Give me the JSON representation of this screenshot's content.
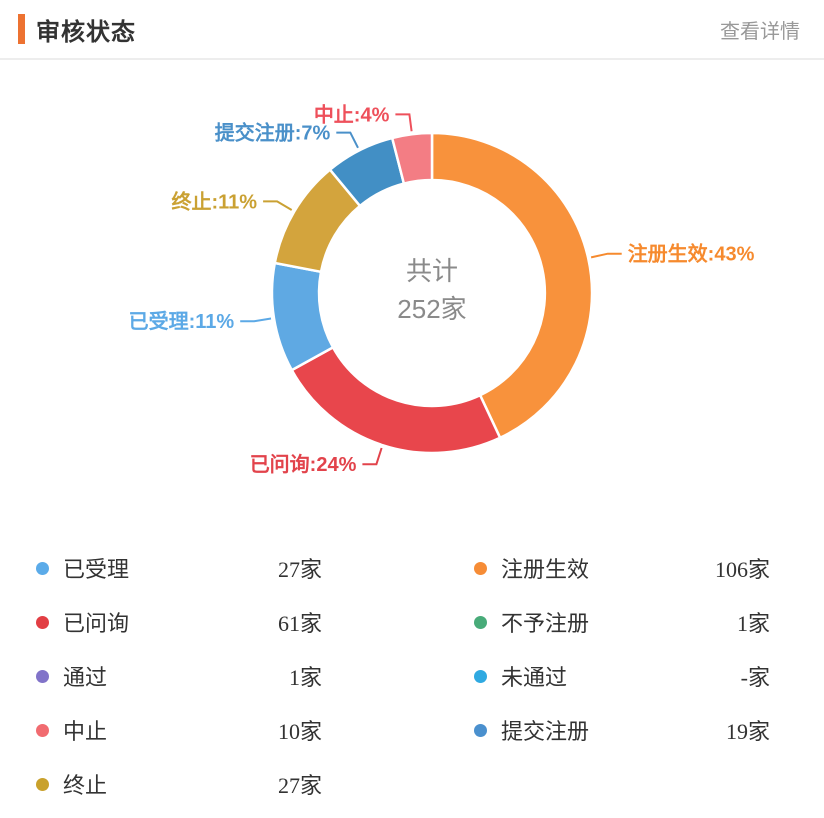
{
  "header": {
    "title": "审核状态",
    "link": "查看详情",
    "accent_color": "#ed7231"
  },
  "chart_data": {
    "type": "pie",
    "donut": true,
    "center_label": {
      "line1": "共计",
      "line2": "252家"
    },
    "total": 252,
    "unit": "家",
    "segments": [
      {
        "label": "注册生效",
        "percent": 43,
        "count": 106,
        "color": "#f8923c",
        "label_color": "#f68a2e"
      },
      {
        "label": "已问询",
        "percent": 24,
        "count": 61,
        "color": "#e8464c",
        "label_color": "#e2434b"
      },
      {
        "label": "已受理",
        "percent": 11,
        "count": 27,
        "color": "#5fa9e3",
        "label_color": "#5ca9e6"
      },
      {
        "label": "终止",
        "percent": 11,
        "count": 27,
        "color": "#d3a43d",
        "label_color": "#caa133"
      },
      {
        "label": "提交注册",
        "percent": 7,
        "count": 19,
        "color": "#428fc5",
        "label_color": "#4a90c9"
      },
      {
        "label": "中止",
        "percent": 4,
        "count": 10,
        "color": "#f37d84",
        "label_color": "#ee505b"
      }
    ]
  },
  "legend": {
    "columns": [
      [
        {
          "label": "已受理",
          "value": "27家",
          "color": "#5babe9"
        },
        {
          "label": "已问询",
          "value": "61家",
          "color": "#e23e44"
        },
        {
          "label": "通过",
          "value": "1家",
          "color": "#8173c9"
        },
        {
          "label": "中止",
          "value": "10家",
          "color": "#f16b70"
        },
        {
          "label": "终止",
          "value": "27家",
          "color": "#c9a12c"
        }
      ],
      [
        {
          "label": "注册生效",
          "value": "106家",
          "color": "#f68c36"
        },
        {
          "label": "不予注册",
          "value": "1家",
          "color": "#48ab79"
        },
        {
          "label": "未通过",
          "value": "-家",
          "color": "#2fa9e1"
        },
        {
          "label": "提交注册",
          "value": "19家",
          "color": "#4a90ce"
        }
      ]
    ]
  }
}
